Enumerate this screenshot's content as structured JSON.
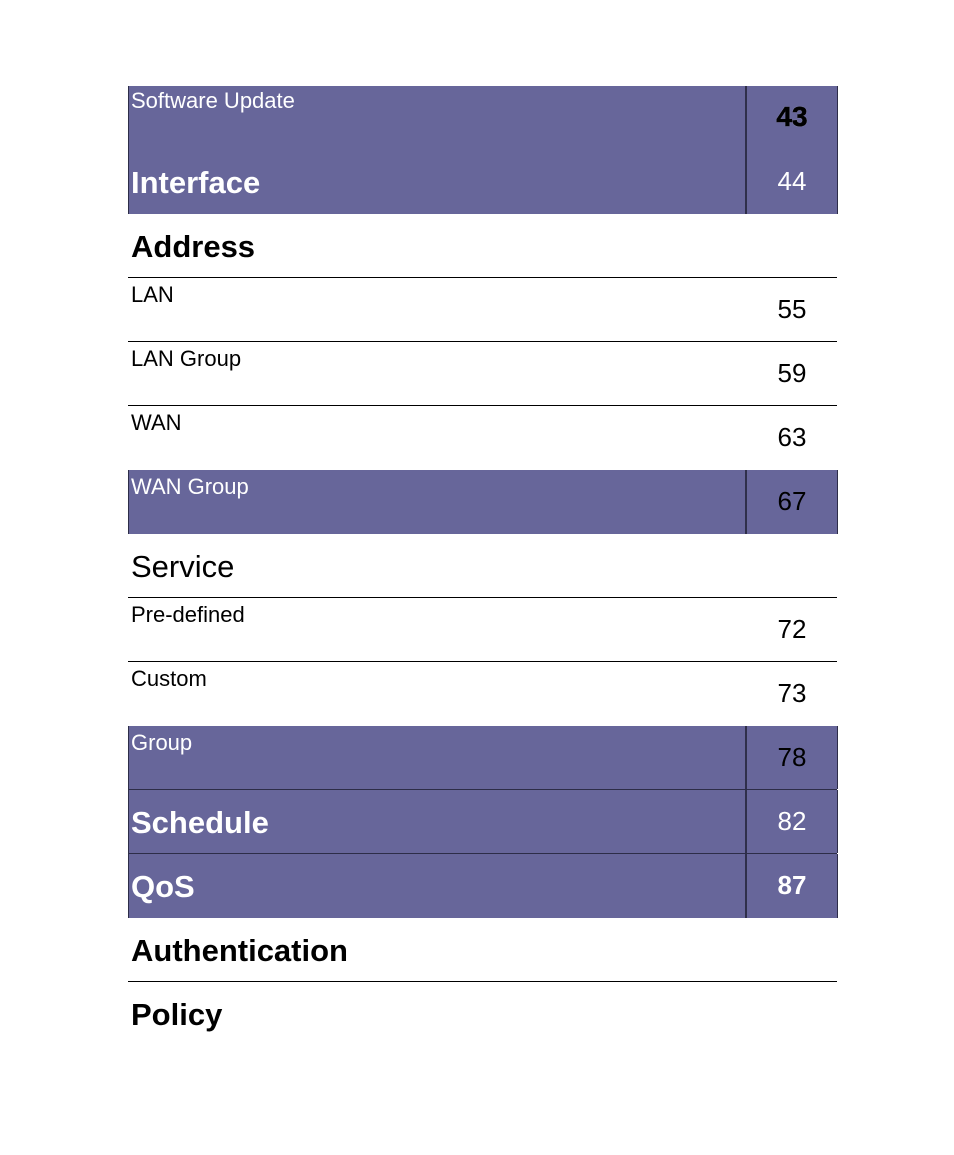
{
  "toc": [
    {
      "label": "Software Update",
      "page": "43"
    },
    {
      "label": "Interface",
      "page": "44"
    },
    {
      "label": "Address",
      "page": ""
    },
    {
      "label": "LAN",
      "page": "55"
    },
    {
      "label": "LAN Group",
      "page": "59"
    },
    {
      "label": "WAN",
      "page": "63"
    },
    {
      "label": "WAN Group",
      "page": "67"
    },
    {
      "label": "Service",
      "page": ""
    },
    {
      "label": "Pre-defined",
      "page": "72"
    },
    {
      "label": "Custom",
      "page": "73"
    },
    {
      "label": "Group",
      "page": "78"
    },
    {
      "label": "Schedule",
      "page": "82"
    },
    {
      "label": "QoS",
      "page": "87"
    },
    {
      "label": "Authentication",
      "page": ""
    },
    {
      "label": "Policy",
      "page": ""
    }
  ],
  "colors": {
    "highlight": "#67669a",
    "text_on_highlight": "#ffffff",
    "text": "#000000"
  }
}
